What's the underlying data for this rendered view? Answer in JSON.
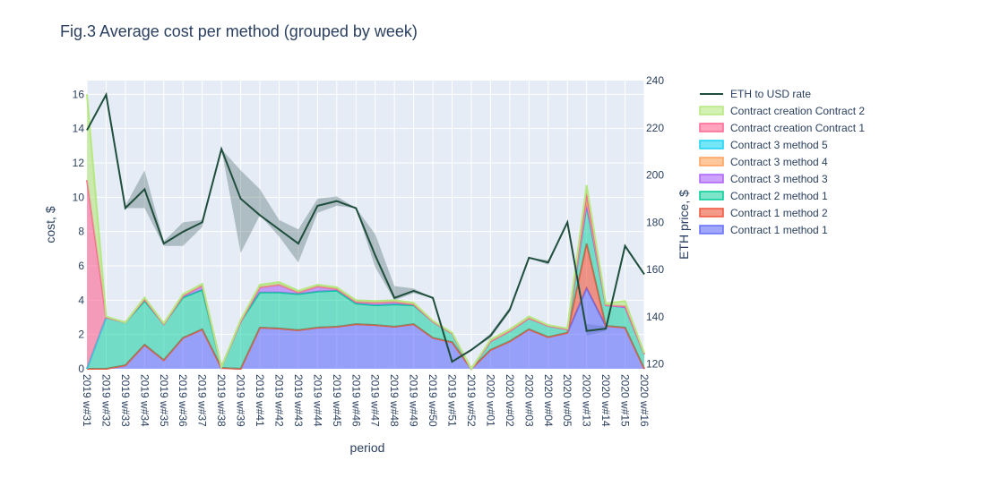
{
  "chart_data": {
    "type": "area",
    "title": "Fig.3 Average cost per method (grouped by week)",
    "xlabel": "period",
    "ylabel": "cost, $",
    "y2label": "ETH price, $",
    "ylim": [
      0,
      16.8
    ],
    "y2lim": [
      118,
      240
    ],
    "yticks": [
      0,
      2,
      4,
      6,
      8,
      10,
      12,
      14,
      16
    ],
    "y2ticks": [
      120,
      140,
      160,
      180,
      200,
      220,
      240
    ],
    "grid": true,
    "legend_position": "right",
    "categories": [
      "2019 w#31",
      "2019 w#32",
      "2019 w#33",
      "2019 w#34",
      "2019 w#35",
      "2019 w#36",
      "2019 w#37",
      "2019 w#38",
      "2019 w#39",
      "2019 w#41",
      "2019 w#42",
      "2019 w#43",
      "2019 w#44",
      "2019 w#45",
      "2019 w#46",
      "2019 w#47",
      "2019 w#48",
      "2019 w#49",
      "2019 w#50",
      "2019 w#51",
      "2019 w#52",
      "2020 w#01",
      "2020 w#02",
      "2020 w#03",
      "2020 w#04",
      "2020 w#05",
      "2020 w#13",
      "2020 w#14",
      "2020 w#15",
      "2020 w#16"
    ],
    "series": [
      {
        "name": "Contract 1 method 1",
        "color": "#636efa",
        "fill": "rgba(99,110,250,0.6)",
        "values": [
          0,
          0,
          0.2,
          1.4,
          0.5,
          1.8,
          2.3,
          0.05,
          0,
          2.4,
          2.35,
          2.25,
          2.4,
          2.45,
          2.6,
          2.55,
          2.45,
          2.6,
          1.8,
          1.55,
          0,
          1.1,
          1.6,
          2.3,
          1.85,
          2.1,
          4.7,
          2.5,
          2.4,
          0
        ]
      },
      {
        "name": "Contract 1 method 2",
        "color": "#ef553b",
        "fill": "rgba(239,85,59,0.6)",
        "values": [
          0,
          0,
          0,
          0,
          0,
          0,
          0,
          0,
          0,
          0,
          0,
          0,
          0,
          0,
          0,
          0,
          0,
          0,
          0,
          0,
          0,
          0,
          0,
          0,
          0,
          0,
          2.6,
          0,
          0,
          0
        ]
      },
      {
        "name": "Contract 2 method 1",
        "color": "#00cc96",
        "fill": "rgba(0,204,150,0.5)",
        "values": [
          0,
          3.0,
          2.5,
          2.55,
          2.1,
          2.35,
          2.3,
          0.05,
          2.75,
          2.05,
          2.1,
          2.1,
          2.1,
          2.1,
          1.2,
          1.15,
          1.3,
          1.1,
          0.95,
          0.5,
          0,
          0.5,
          0.6,
          0.65,
          0.65,
          0.2,
          2.2,
          1.2,
          1.2,
          0.85
        ]
      },
      {
        "name": "Contract 3 method 3",
        "color": "#ab63fa",
        "fill": "rgba(171,99,250,0.6)",
        "values": [
          0,
          0,
          0,
          0.1,
          0,
          0.1,
          0.25,
          0,
          0,
          0.3,
          0.45,
          0.1,
          0.3,
          0.1,
          0.1,
          0.15,
          0.15,
          0.05,
          0,
          0,
          0,
          0,
          0,
          0,
          0,
          0,
          0.1,
          0,
          0,
          0
        ]
      },
      {
        "name": "Contract 3 method 4",
        "color": "#ffa15a",
        "fill": "rgba(255,161,90,0.6)",
        "values": [
          0,
          0,
          0,
          0,
          0,
          0,
          0,
          0,
          0,
          0,
          0,
          0,
          0,
          0,
          0,
          0,
          0,
          0,
          0,
          0,
          0,
          0,
          0,
          0,
          0,
          0,
          0.3,
          0,
          0.05,
          0
        ]
      },
      {
        "name": "Contract 3 method 5",
        "color": "#19d3f3",
        "fill": "rgba(25,211,243,0.6)",
        "values": [
          0,
          0,
          0,
          0,
          0,
          0,
          0,
          0,
          0,
          0,
          0,
          0,
          0,
          0,
          0,
          0,
          0,
          0,
          0,
          0,
          0,
          0,
          0,
          0,
          0,
          0,
          0.35,
          0,
          0,
          0
        ]
      },
      {
        "name": "Contract creation Contract 1",
        "color": "#ff6692",
        "fill": "rgba(255,102,146,0.6)",
        "values": [
          11.0,
          0,
          0,
          0,
          0,
          0,
          0,
          0,
          0,
          0,
          0,
          0,
          0,
          0,
          0,
          0,
          0,
          0,
          0,
          0,
          0,
          0,
          0,
          0,
          0,
          0,
          0,
          0,
          0,
          0
        ]
      },
      {
        "name": "Contract creation Contract 2",
        "color": "#b6e880",
        "fill": "rgba(182,232,128,0.6)",
        "values": [
          5.0,
          0.05,
          0,
          0.1,
          0.05,
          0.1,
          0.1,
          0,
          0.1,
          0.15,
          0.15,
          0.1,
          0.1,
          0.1,
          0.1,
          0.1,
          0.1,
          0.1,
          0.05,
          0.05,
          0,
          0.1,
          0.1,
          0.1,
          0.05,
          0.05,
          0.45,
          0.1,
          0.3,
          0.05
        ]
      }
    ],
    "line_series": {
      "name": "ETH to USD rate",
      "color": "#1f4e3d",
      "axis": "y2",
      "values": [
        219,
        234,
        186,
        194,
        171,
        176,
        180,
        211,
        190,
        183,
        177,
        171,
        187,
        189,
        186,
        166,
        148,
        151,
        148,
        121,
        126,
        132,
        143,
        165,
        163,
        180,
        134,
        135,
        170,
        158
      ],
      "band_upper": [
        219,
        234,
        187,
        202,
        172,
        180,
        181,
        211,
        202,
        194,
        181,
        177,
        190,
        191,
        186,
        175,
        153,
        152,
        148,
        121,
        126,
        133,
        144,
        165,
        164,
        180,
        137,
        136,
        170,
        158
      ],
      "band_lower": [
        219,
        234,
        186,
        186,
        170,
        170,
        178,
        211,
        167,
        183,
        174,
        163,
        184,
        187,
        186,
        161,
        147,
        150,
        148,
        121,
        126,
        131,
        142,
        165,
        162,
        180,
        132,
        134,
        170,
        158
      ]
    }
  }
}
